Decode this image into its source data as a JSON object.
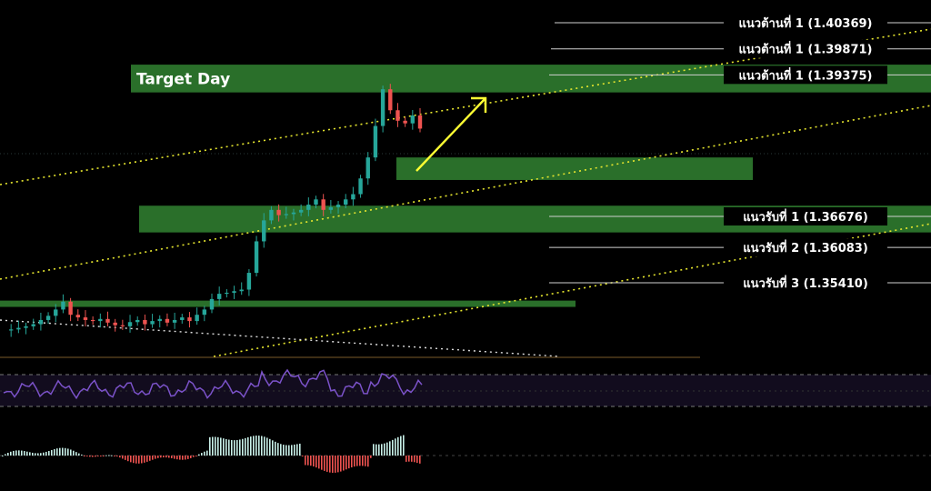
{
  "chart_data": {
    "type": "line",
    "title": "",
    "xlabel": "",
    "ylabel": "",
    "ylim": [
      1.342,
      1.408
    ],
    "zone_color": "#2a6f2a",
    "trend_color": "#e6e62e",
    "arrow_color": "#ffff33",
    "rsi_color": "#7b52c9",
    "up_color": "#26a69a",
    "down_color": "#ef5350",
    "resistance_levels": [
      {
        "label": "แนวต้านที่ 1 (1.40369)",
        "price": 1.40369
      },
      {
        "label": "แนวต้านที่ 1 (1.39871)",
        "price": 1.39871
      },
      {
        "label": "แนวต้านที่ 1 (1.39375)",
        "price": 1.39375
      }
    ],
    "support_levels": [
      {
        "label": "แนวรับที่ 1 (1.36676)",
        "price": 1.36676
      },
      {
        "label": "แนวรับที่ 2 (1.36083)",
        "price": 1.36083
      },
      {
        "label": "แนวรับที่ 3 (1.35410)",
        "price": 1.3541
      }
    ],
    "zones": [
      {
        "label": "Target Day",
        "price_top": 1.3957,
        "price_bottom": 1.3904
      },
      {
        "label": "",
        "price_top": 1.378,
        "price_bottom": 1.3737
      },
      {
        "label": "",
        "price_top": 1.3688,
        "price_bottom": 1.3637
      },
      {
        "label": "",
        "price_top": 1.3507,
        "price_bottom": 1.3495
      }
    ],
    "price_series": [
      1.345,
      1.3452,
      1.3455,
      1.3458,
      1.3462,
      1.347,
      1.3478,
      1.349,
      1.3505,
      1.348,
      1.3475,
      1.347,
      1.3468,
      1.3472,
      1.3465,
      1.346,
      1.3458,
      1.3466,
      1.347,
      1.3462,
      1.3468,
      1.3472,
      1.3465,
      1.347,
      1.3475,
      1.3468,
      1.348,
      1.349,
      1.351,
      1.352,
      1.3522,
      1.3525,
      1.3528,
      1.356,
      1.362,
      1.366,
      1.368,
      1.367,
      1.3672,
      1.3675,
      1.368,
      1.369,
      1.37,
      1.368,
      1.3685,
      1.369,
      1.37,
      1.371,
      1.374,
      1.378,
      1.384,
      1.391,
      1.387,
      1.385,
      1.3845,
      1.386,
      1.3835
    ]
  }
}
